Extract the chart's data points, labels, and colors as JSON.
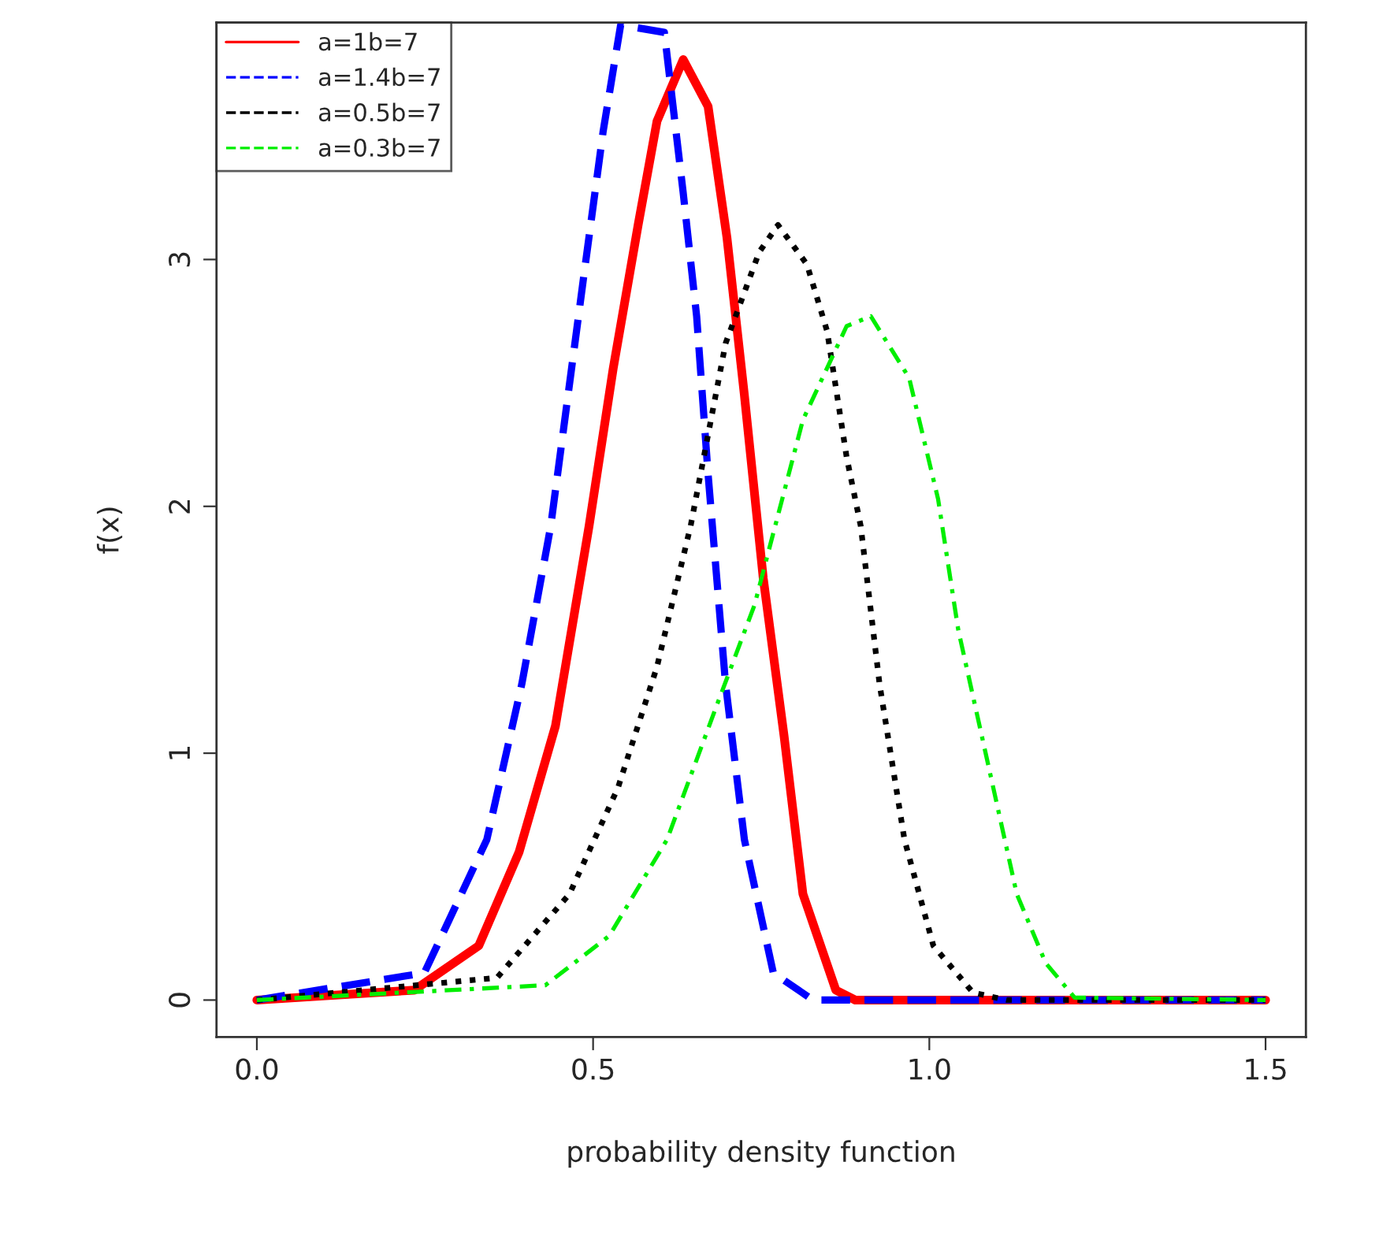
{
  "chart_data": {
    "type": "line",
    "xlabel": "probability density function",
    "ylabel": "f(x)",
    "xlim": [
      -0.06,
      1.56
    ],
    "ylim": [
      -0.15,
      3.96
    ],
    "xticks": [
      {
        "value": 0,
        "label": "0.0"
      },
      {
        "value": 0.5,
        "label": "0.5"
      },
      {
        "value": 1.0,
        "label": "1.0"
      },
      {
        "value": 1.5,
        "label": "1.5"
      }
    ],
    "yticks": [
      0,
      1,
      2,
      3
    ],
    "grid": false,
    "legend": "top left",
    "series": [
      {
        "name": "a=1b=7",
        "color": "#ff0000",
        "line_style": "solid",
        "x": [
          0,
          0.234,
          0.33,
          0.39,
          0.444,
          0.494,
          0.53,
          0.567,
          0.595,
          0.634,
          0.671,
          0.699,
          0.725,
          0.753,
          0.784,
          0.812,
          0.861,
          0.89,
          1.5
        ],
        "values": [
          0,
          0.04,
          0.22,
          0.6,
          1.11,
          1.92,
          2.56,
          3.14,
          3.56,
          3.81,
          3.62,
          3.09,
          2.45,
          1.71,
          1.07,
          0.43,
          0.04,
          0,
          0
        ]
      },
      {
        "name": "a=1.4b=7",
        "color": "#0000ff",
        "line_style": "dashed",
        "x": [
          0,
          0.249,
          0.342,
          0.394,
          0.437,
          0.487,
          0.515,
          0.541,
          0.606,
          0.634,
          0.654,
          0.671,
          0.697,
          0.725,
          0.768,
          0.827,
          1.5
        ],
        "values": [
          0,
          0.11,
          0.65,
          1.28,
          1.92,
          2.95,
          3.52,
          3.95,
          3.92,
          3.27,
          2.77,
          2.13,
          1.28,
          0.65,
          0.11,
          0,
          0
        ]
      },
      {
        "name": "a=0.5b=7",
        "color": "#000000",
        "line_style": "dotted",
        "x": [
          0,
          0.357,
          0.465,
          0.537,
          0.595,
          0.645,
          0.697,
          0.747,
          0.775,
          0.818,
          0.848,
          0.877,
          0.898,
          0.926,
          0.963,
          1.006,
          1.065,
          1.115,
          1.5
        ],
        "values": [
          0,
          0.09,
          0.43,
          0.86,
          1.35,
          1.92,
          2.66,
          3.03,
          3.14,
          2.98,
          2.71,
          2.2,
          1.92,
          1.28,
          0.65,
          0.22,
          0.03,
          0,
          0
        ]
      },
      {
        "name": "a=0.3b=7",
        "color": "#00ee00",
        "line_style": "dashdot",
        "x": [
          0,
          0.429,
          0.524,
          0.61,
          0.682,
          0.74,
          0.812,
          0.877,
          0.913,
          0.97,
          1.013,
          1.043,
          1.087,
          1.13,
          1.173,
          1.216,
          1.5
        ],
        "values": [
          0,
          0.06,
          0.26,
          0.65,
          1.18,
          1.6,
          2.35,
          2.73,
          2.77,
          2.52,
          2.03,
          1.5,
          0.96,
          0.43,
          0.15,
          0.01,
          0
        ]
      }
    ]
  }
}
